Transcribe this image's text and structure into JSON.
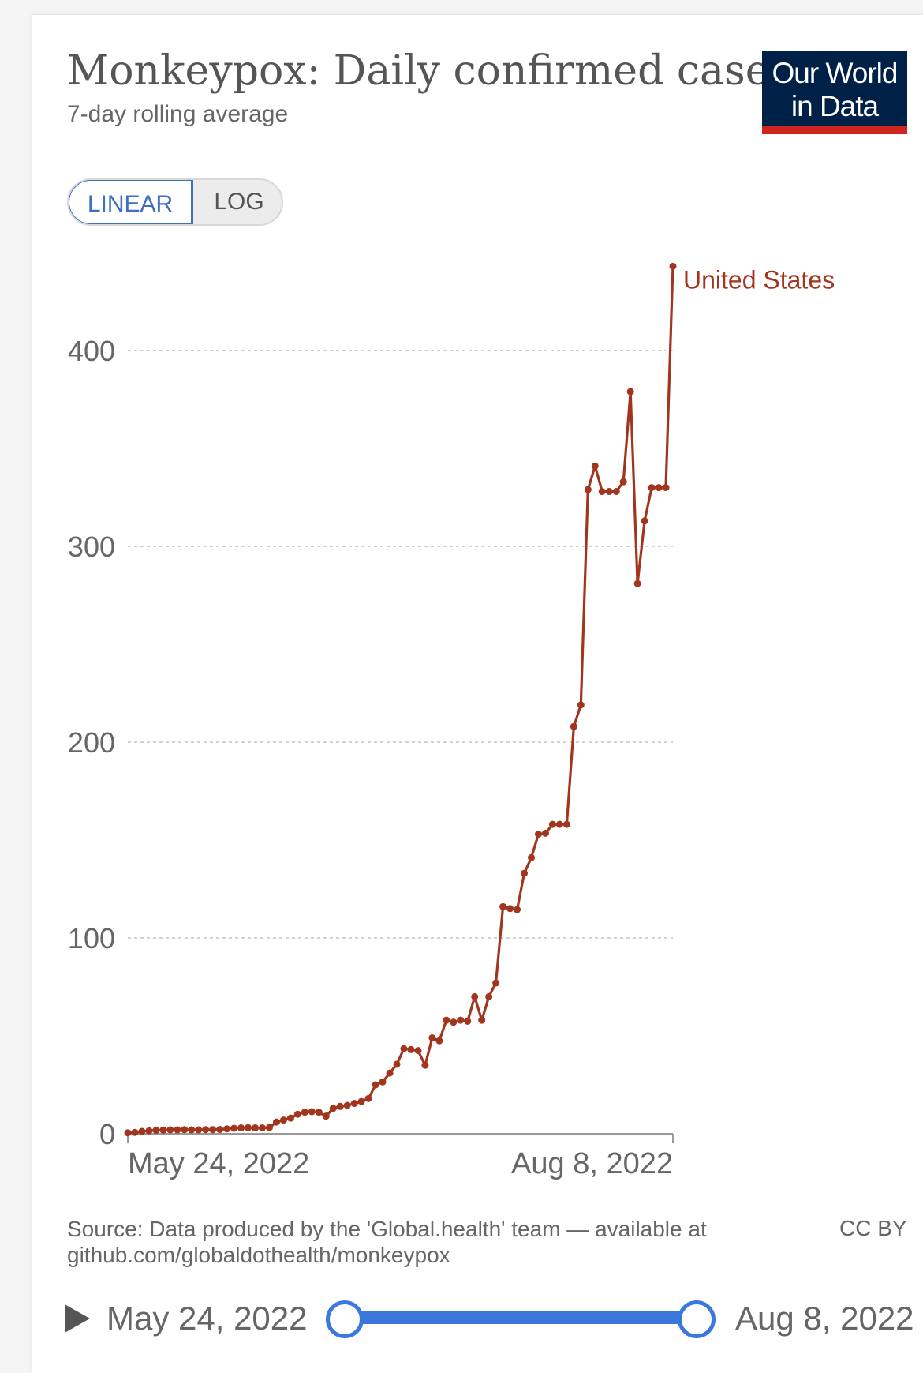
{
  "header": {
    "title": "Monkeypox: Daily confirmed cases",
    "subtitle": "7-day rolling average",
    "logo_line1": "Our World",
    "logo_line2": "in Data"
  },
  "toggle": {
    "linear_label": "LINEAR",
    "log_label": "LOG",
    "selected": "LINEAR"
  },
  "footer": {
    "source": "Source: Data produced by the 'Global.health' team — available at github.com/globaldothealth/monkeypox",
    "license": "CC BY"
  },
  "timeline": {
    "start_label": "May 24, 2022",
    "end_label": "Aug 8, 2022"
  },
  "colors": {
    "series": "#a2351d",
    "accent": "#3a78db",
    "logo_bg": "#002147",
    "logo_bar": "#ce261e"
  },
  "chart_data": {
    "type": "line",
    "title": "Monkeypox: Daily confirmed cases",
    "subtitle": "7-day rolling average",
    "xlabel": "",
    "ylabel": "",
    "ylim": [
      0,
      400
    ],
    "yticks": [
      0,
      100,
      200,
      300,
      400
    ],
    "xtick_labels": [
      "May 24, 2022",
      "Aug 8, 2022"
    ],
    "x_start": "2022-05-24",
    "x_end": "2022-08-08",
    "grid": true,
    "series": [
      {
        "name": "United States",
        "values": [
          0.5,
          0.7,
          1.2,
          1.5,
          1.8,
          1.9,
          2.0,
          2.0,
          2.1,
          2.0,
          2.0,
          2.1,
          2.1,
          2.2,
          2.5,
          2.8,
          3.0,
          3.1,
          3.0,
          3.0,
          3.2,
          6.0,
          7.0,
          8.0,
          10.0,
          11.0,
          11.3,
          11.0,
          9.0,
          13.0,
          14.0,
          14.5,
          15.5,
          16.5,
          18.0,
          25.0,
          26.5,
          31.0,
          35.5,
          43.5,
          43.0,
          42.5,
          35.0,
          49.0,
          47.5,
          58.0,
          57.0,
          58.0,
          57.5,
          70.0,
          58.0,
          70.0,
          77.0,
          116.0,
          115.0,
          114.5,
          133.0,
          141.0,
          153.0,
          153.5,
          158.0,
          158.0,
          158.0,
          208.0,
          219.0,
          329.0,
          341.0,
          328.0,
          328.0,
          328.0,
          333.0,
          379.0,
          281.0,
          313.0,
          330.0,
          330.0,
          330.0,
          443.0
        ]
      }
    ]
  }
}
